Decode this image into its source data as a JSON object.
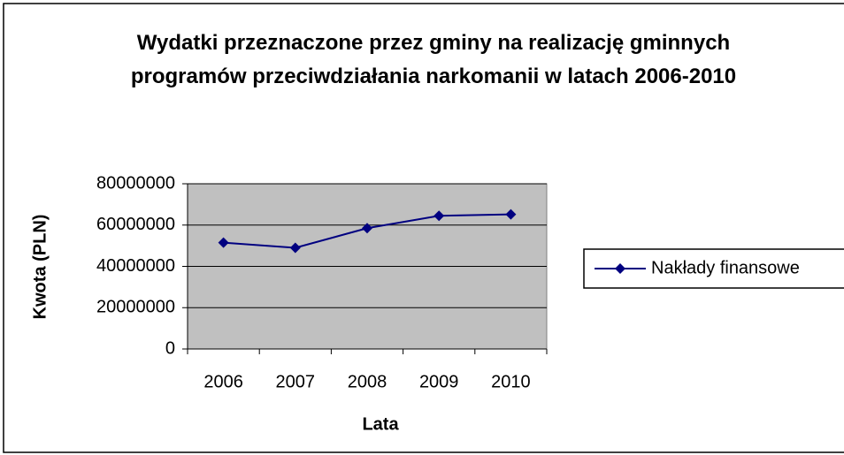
{
  "chart_data": {
    "type": "line",
    "title": "Wydatki przeznaczone przez gminy na realizację gminnych programów przeciwdziałania narkomanii w latach 2006-2010",
    "xlabel": "Lata",
    "ylabel": "Kwota (PLN)",
    "categories": [
      "2006",
      "2007",
      "2008",
      "2009",
      "2010"
    ],
    "series": [
      {
        "name": "Nakłady finansowe",
        "color": "#000080",
        "values": [
          51500000,
          49000000,
          58500000,
          64500000,
          65200000
        ]
      }
    ],
    "ylim": [
      0,
      80000000
    ],
    "yticks": [
      0,
      20000000,
      40000000,
      60000000,
      80000000
    ],
    "grid": true,
    "legend": "right",
    "plot_background": "#c0c0c0"
  }
}
